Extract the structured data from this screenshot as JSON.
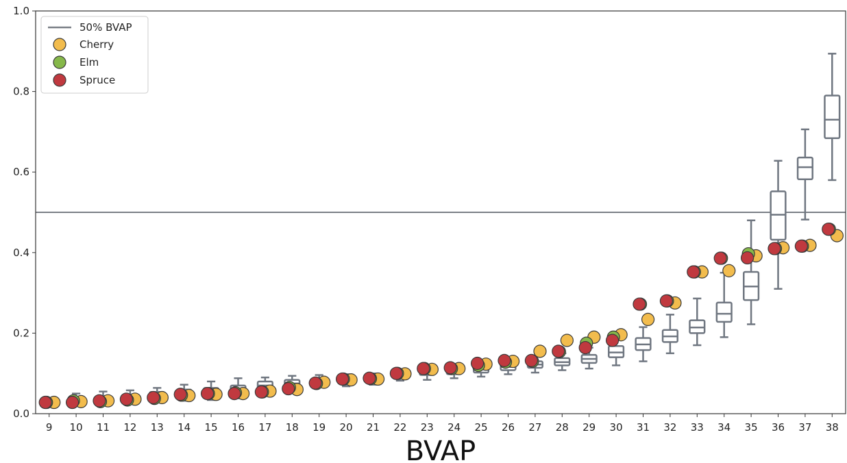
{
  "chart_data": {
    "type": "scatter",
    "title": "",
    "xlabel": "BVAP",
    "ylabel": "",
    "ylim": [
      0,
      1.0
    ],
    "grid": false,
    "legend_placement": "top-left",
    "categories": [
      "9",
      "10",
      "11",
      "12",
      "13",
      "14",
      "15",
      "16",
      "17",
      "18",
      "19",
      "20",
      "21",
      "22",
      "23",
      "24",
      "25",
      "26",
      "27",
      "28",
      "29",
      "30",
      "31",
      "32",
      "33",
      "34",
      "35",
      "36",
      "37",
      "38"
    ],
    "y_ticks": [
      "0.0",
      "0.2",
      "0.4",
      "0.6",
      "0.8",
      "1.0"
    ],
    "y_tick_values": [
      0,
      0.2,
      0.4,
      0.6,
      0.8,
      1.0
    ],
    "reference_line": {
      "name": "50% BVAP",
      "value": 0.5,
      "color": "#7a7f86"
    },
    "boxplots": [
      {
        "min": 0.018,
        "q1": 0.022,
        "median": 0.026,
        "q3": 0.03,
        "max": 0.034
      },
      {
        "min": 0.02,
        "q1": 0.028,
        "median": 0.032,
        "q3": 0.04,
        "max": 0.05
      },
      {
        "min": 0.022,
        "q1": 0.03,
        "median": 0.036,
        "q3": 0.044,
        "max": 0.055
      },
      {
        "min": 0.026,
        "q1": 0.034,
        "median": 0.04,
        "q3": 0.048,
        "max": 0.058
      },
      {
        "min": 0.03,
        "q1": 0.04,
        "median": 0.046,
        "q3": 0.054,
        "max": 0.064
      },
      {
        "min": 0.032,
        "q1": 0.044,
        "median": 0.05,
        "q3": 0.06,
        "max": 0.072
      },
      {
        "min": 0.034,
        "q1": 0.046,
        "median": 0.054,
        "q3": 0.064,
        "max": 0.08
      },
      {
        "min": 0.038,
        "q1": 0.05,
        "median": 0.058,
        "q3": 0.07,
        "max": 0.088
      },
      {
        "min": 0.05,
        "q1": 0.062,
        "median": 0.07,
        "q3": 0.08,
        "max": 0.09
      },
      {
        "min": 0.056,
        "q1": 0.068,
        "median": 0.075,
        "q3": 0.084,
        "max": 0.094
      },
      {
        "min": 0.066,
        "q1": 0.076,
        "median": 0.082,
        "q3": 0.088,
        "max": 0.096
      },
      {
        "min": 0.068,
        "q1": 0.078,
        "median": 0.084,
        "q3": 0.09,
        "max": 0.098
      },
      {
        "min": 0.072,
        "q1": 0.082,
        "median": 0.087,
        "q3": 0.092,
        "max": 0.1
      },
      {
        "min": 0.082,
        "q1": 0.09,
        "median": 0.096,
        "q3": 0.102,
        "max": 0.108
      },
      {
        "min": 0.084,
        "q1": 0.096,
        "median": 0.104,
        "q3": 0.11,
        "max": 0.118
      },
      {
        "min": 0.088,
        "q1": 0.098,
        "median": 0.106,
        "q3": 0.114,
        "max": 0.12
      },
      {
        "min": 0.092,
        "q1": 0.102,
        "median": 0.11,
        "q3": 0.118,
        "max": 0.126
      },
      {
        "min": 0.098,
        "q1": 0.108,
        "median": 0.116,
        "q3": 0.124,
        "max": 0.134
      },
      {
        "min": 0.102,
        "q1": 0.114,
        "median": 0.122,
        "q3": 0.13,
        "max": 0.142
      },
      {
        "min": 0.108,
        "q1": 0.12,
        "median": 0.128,
        "q3": 0.138,
        "max": 0.15
      },
      {
        "min": 0.112,
        "q1": 0.126,
        "median": 0.136,
        "q3": 0.146,
        "max": 0.164
      },
      {
        "min": 0.12,
        "q1": 0.14,
        "median": 0.152,
        "q3": 0.168,
        "max": 0.196
      },
      {
        "min": 0.13,
        "q1": 0.158,
        "median": 0.172,
        "q3": 0.188,
        "max": 0.215
      },
      {
        "min": 0.15,
        "q1": 0.178,
        "median": 0.192,
        "q3": 0.208,
        "max": 0.246
      },
      {
        "min": 0.17,
        "q1": 0.2,
        "median": 0.214,
        "q3": 0.232,
        "max": 0.286
      },
      {
        "min": 0.19,
        "q1": 0.228,
        "median": 0.248,
        "q3": 0.276,
        "max": 0.35
      },
      {
        "min": 0.222,
        "q1": 0.282,
        "median": 0.316,
        "q3": 0.352,
        "max": 0.48
      },
      {
        "min": 0.31,
        "q1": 0.432,
        "median": 0.494,
        "q3": 0.552,
        "max": 0.628
      },
      {
        "min": 0.482,
        "q1": 0.582,
        "median": 0.612,
        "q3": 0.636,
        "max": 0.706
      },
      {
        "min": 0.58,
        "q1": 0.684,
        "median": 0.73,
        "q3": 0.79,
        "max": 0.894
      }
    ],
    "series": [
      {
        "name": "Cherry",
        "color": "#f2bc4d",
        "values": [
          0.028,
          0.03,
          0.032,
          0.036,
          0.04,
          0.045,
          0.048,
          0.05,
          0.056,
          0.06,
          0.078,
          0.084,
          0.086,
          0.099,
          0.11,
          0.112,
          0.123,
          0.13,
          0.155,
          0.182,
          0.19,
          0.196,
          0.234,
          0.275,
          0.352,
          0.355,
          0.392,
          0.412,
          0.418,
          0.442
        ]
      },
      {
        "name": "Elm",
        "color": "#86b84a",
        "values": [
          0.028,
          0.032,
          0.03,
          0.034,
          0.038,
          0.046,
          0.05,
          0.052,
          0.054,
          0.065,
          0.075,
          0.086,
          0.087,
          0.1,
          0.112,
          0.112,
          0.12,
          0.128,
          0.13,
          0.154,
          0.175,
          0.19,
          0.272,
          0.28,
          0.352,
          0.386,
          0.397,
          0.41,
          0.416,
          0.458
        ]
      },
      {
        "name": "Spruce",
        "color": "#c0393f",
        "values": [
          0.028,
          0.028,
          0.032,
          0.036,
          0.04,
          0.048,
          0.05,
          0.05,
          0.054,
          0.062,
          0.076,
          0.086,
          0.088,
          0.1,
          0.112,
          0.114,
          0.125,
          0.132,
          0.132,
          0.155,
          0.164,
          0.182,
          0.272,
          0.28,
          0.352,
          0.386,
          0.387,
          0.41,
          0.416,
          0.458
        ]
      }
    ]
  }
}
